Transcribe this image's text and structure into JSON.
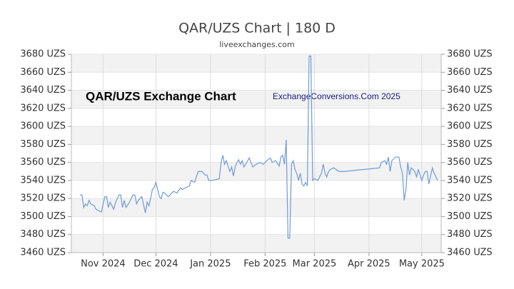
{
  "chart_data": {
    "type": "line",
    "title": "QAR/UZS Chart | 180 D",
    "subtitle": "liveexchanges.com",
    "annotations": [
      "QAR/UZS Exchange Chart",
      "ExchangeConversions.Com 2025"
    ],
    "x": [
      5,
      6,
      7,
      8,
      9,
      10,
      11,
      13,
      14,
      16,
      17,
      19,
      20,
      21,
      22,
      24,
      25,
      27,
      28,
      29,
      30,
      31,
      33,
      35,
      36,
      37,
      38,
      40,
      42,
      43,
      44,
      45,
      46,
      47,
      48,
      49,
      50,
      51,
      52,
      53,
      55,
      57,
      58,
      60,
      62,
      63,
      65,
      67,
      68,
      70,
      72,
      74,
      76,
      77,
      78,
      80,
      82,
      84,
      85,
      86,
      87,
      88,
      90,
      91,
      92,
      93,
      94,
      95,
      96,
      97,
      98,
      99,
      101,
      102,
      103,
      105,
      107,
      109,
      110,
      111,
      113,
      114,
      116,
      118,
      119,
      120,
      121,
      122,
      123,
      124,
      125,
      126,
      127,
      128,
      129,
      130,
      131,
      132,
      133,
      134,
      135,
      136,
      137,
      138,
      140,
      142,
      143,
      144,
      145,
      146,
      147,
      149,
      152,
      155,
      170,
      175,
      176,
      178,
      179,
      180,
      181,
      182,
      184,
      186,
      187,
      188,
      189,
      190,
      191,
      192,
      193,
      195,
      196,
      197,
      198,
      199,
      200,
      201,
      202,
      203,
      205,
      206,
      208
    ],
    "series": [
      {
        "name": "QAR/UZS",
        "color": "#6f9bd8",
        "values": [
          3524,
          3524,
          3510,
          3514,
          3512,
          3518,
          3514,
          3512,
          3508,
          3506,
          3505,
          3522,
          3522,
          3510,
          3516,
          3508,
          3515,
          3524,
          3524,
          3510,
          3518,
          3510,
          3516,
          3524,
          3524,
          3514,
          3518,
          3522,
          3504,
          3516,
          3512,
          3520,
          3530,
          3532,
          3538,
          3530,
          3522,
          3520,
          3527,
          3526,
          3522,
          3526,
          3528,
          3526,
          3532,
          3530,
          3532,
          3534,
          3540,
          3538,
          3550,
          3550,
          3546,
          3546,
          3540,
          3540,
          3541,
          3542,
          3560,
          3568,
          3558,
          3562,
          3550,
          3555,
          3545,
          3555,
          3560,
          3563,
          3558,
          3562,
          3555,
          3558,
          3565,
          3560,
          3555,
          3558,
          3560,
          3558,
          3560,
          3562,
          3565,
          3560,
          3562,
          3556,
          3566,
          3568,
          3558,
          3585,
          3476,
          3476,
          3558,
          3562,
          3552,
          3548,
          3540,
          3548,
          3536,
          3534,
          3538,
          3534,
          3678,
          3678,
          3540,
          3542,
          3540,
          3548,
          3558,
          3548,
          3544,
          3550,
          3552,
          3554,
          3550,
          3550,
          3553,
          3554,
          3560,
          3562,
          3558,
          3566,
          3550,
          3562,
          3566,
          3566,
          3555,
          3548,
          3518,
          3530,
          3560,
          3546,
          3554,
          3550,
          3544,
          3552,
          3546,
          3540,
          3546,
          3550,
          3550,
          3536,
          3554,
          3548,
          3540
        ]
      }
    ],
    "xlim": [
      0,
      210
    ],
    "xticks": [
      {
        "value": 18,
        "label": "Nov 2024"
      },
      {
        "value": 48,
        "label": "Dec 2024"
      },
      {
        "value": 79,
        "label": "Jan 2025"
      },
      {
        "value": 110,
        "label": "Feb 2025"
      },
      {
        "value": 138,
        "label": "Mar 2025"
      },
      {
        "value": 169,
        "label": "Apr 2025"
      },
      {
        "value": 199,
        "label": "May 2025"
      }
    ],
    "ylim": [
      3460,
      3680
    ],
    "yticks": [
      {
        "value": 3460,
        "label": "3460 UZS"
      },
      {
        "value": 3480,
        "label": "3480 UZS"
      },
      {
        "value": 3500,
        "label": "3500 UZS"
      },
      {
        "value": 3520,
        "label": "3520 UZS"
      },
      {
        "value": 3540,
        "label": "3540 UZS"
      },
      {
        "value": 3560,
        "label": "3560 UZS"
      },
      {
        "value": 3580,
        "label": "3580 UZS"
      },
      {
        "value": 3600,
        "label": "3600 UZS"
      },
      {
        "value": 3620,
        "label": "3620 UZS"
      },
      {
        "value": 3640,
        "label": "3640 UZS"
      },
      {
        "value": 3660,
        "label": "3660 UZS"
      },
      {
        "value": 3680,
        "label": "3680 UZS"
      }
    ],
    "grid": true
  }
}
